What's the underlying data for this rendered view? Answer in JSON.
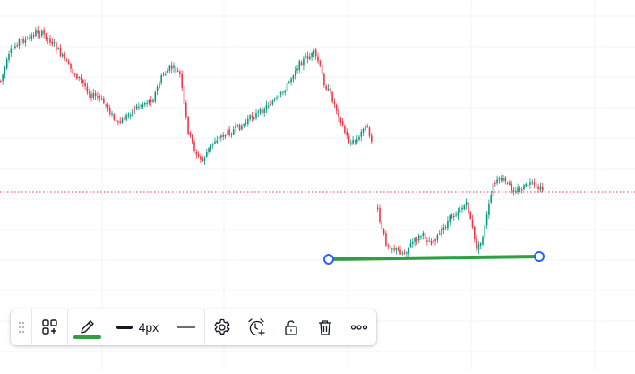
{
  "colors": {
    "up": "#089981",
    "down": "#f23645",
    "drawing_line": "#2ea043",
    "handle": "#2962ff",
    "price_line": "#f23645",
    "grid": "#f0f3fa"
  },
  "drawing": {
    "type": "trend-line",
    "line_color_name": "green",
    "line_width_label": "4px"
  },
  "toolbar": {
    "icons": [
      "grip-icon",
      "templates-icon",
      "pencil-icon",
      "line-width-icon",
      "line-style-icon",
      "settings-icon",
      "alert-icon",
      "lock-icon",
      "trash-icon",
      "more-icon"
    ],
    "line_width_label": "4px"
  }
}
